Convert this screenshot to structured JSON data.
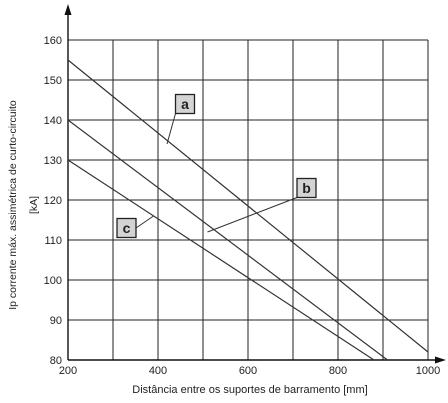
{
  "chart_data": {
    "type": "line",
    "xlabel": "Distância entre os suportes de barramento [mm]",
    "ylabel_line1": "Ip corrente máx. assimétrica de curto-circuito",
    "ylabel_line2": "[kA]",
    "xlim": [
      200,
      1000
    ],
    "ylim": [
      80,
      160
    ],
    "x_ticks": [
      200,
      400,
      600,
      800,
      1000
    ],
    "x_tick_labels": [
      "200",
      "400",
      "600",
      "800",
      "1000"
    ],
    "y_ticks": [
      80,
      90,
      100,
      110,
      120,
      130,
      140,
      150,
      160
    ],
    "y_tick_labels": [
      "80",
      "90",
      "100",
      "110",
      "120",
      "130",
      "140",
      "150",
      "160"
    ],
    "x_minor_step": 100,
    "grid": true,
    "series": [
      {
        "name": "a",
        "x": [
          200,
          1000
        ],
        "y": [
          155,
          82
        ]
      },
      {
        "name": "b",
        "x": [
          200,
          910
        ],
        "y": [
          140,
          80
        ]
      },
      {
        "name": "c",
        "x": [
          200,
          880
        ],
        "y": [
          130,
          80
        ]
      }
    ],
    "callouts": [
      {
        "label": "a",
        "box_x": 460,
        "box_y": 144,
        "line_to_x": 420,
        "line_to_y": 134
      },
      {
        "label": "b",
        "box_x": 730,
        "box_y": 123,
        "line_to_x": 510,
        "line_to_y": 112
      },
      {
        "label": "c",
        "box_x": 330,
        "box_y": 113,
        "line_to_x": 390,
        "line_to_y": 116
      }
    ],
    "colors": {
      "line": "#333333",
      "grid": "#222222",
      "callout_fill": "#d4d4d4"
    }
  }
}
